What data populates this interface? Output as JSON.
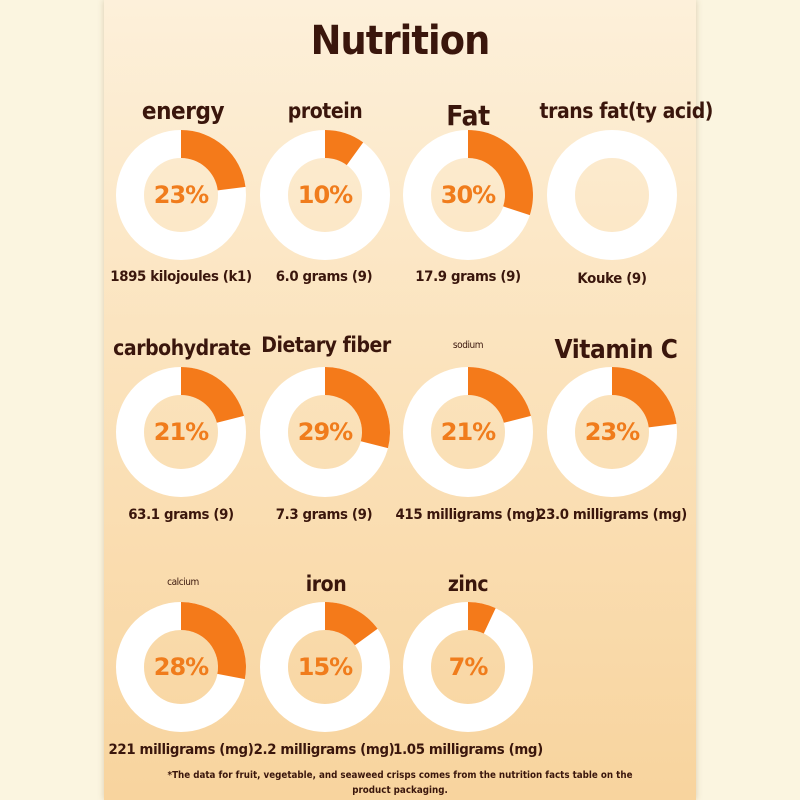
{
  "title": "Nutrition",
  "colors": {
    "ring_fill": "#f47a1a",
    "ring_track": "#ffffff",
    "percent_text": "#f07c1c",
    "text_dark": "#3a160c"
  },
  "nutrients": [
    {
      "label": "energy",
      "percent_text": "23%",
      "percent": 23,
      "amount": "1895 kilojoules (k1)"
    },
    {
      "label": "protein",
      "percent_text": "10%",
      "percent": 10,
      "amount": "6.0 grams (9)"
    },
    {
      "label": "Fat",
      "percent_text": "30%",
      "percent": 30,
      "amount": "17.9 grams (9)"
    },
    {
      "label": "trans fat(ty acid)",
      "percent_text": "",
      "percent": 0,
      "amount": "Kouke (9)"
    },
    {
      "label": "carbohydrate",
      "percent_text": "21%",
      "percent": 21,
      "amount": "63.1 grams (9)"
    },
    {
      "label": "Dietary fiber",
      "percent_text": "29%",
      "percent": 29,
      "amount": "7.3 grams (9)"
    },
    {
      "label": "sodium",
      "percent_text": "21%",
      "percent": 21,
      "amount": "415 milligrams (mg)"
    },
    {
      "label": "Vitamin C",
      "percent_text": "23%",
      "percent": 23,
      "amount": "23.0 milligrams (mg)"
    },
    {
      "label": "calcium",
      "percent_text": "28%",
      "percent": 28,
      "amount": "221 milligrams (mg)"
    },
    {
      "label": "iron",
      "percent_text": "15%",
      "percent": 15,
      "amount": "2.2 milligrams (mg)"
    },
    {
      "label": "zinc",
      "percent_text": "7%",
      "percent": 7,
      "amount": "1.05 milligrams (mg)"
    }
  ],
  "footnote": {
    "line1": "*The data for fruit, vegetable, and seaweed crisps comes from the nutrition facts table on the",
    "line2": "product packaging."
  }
}
